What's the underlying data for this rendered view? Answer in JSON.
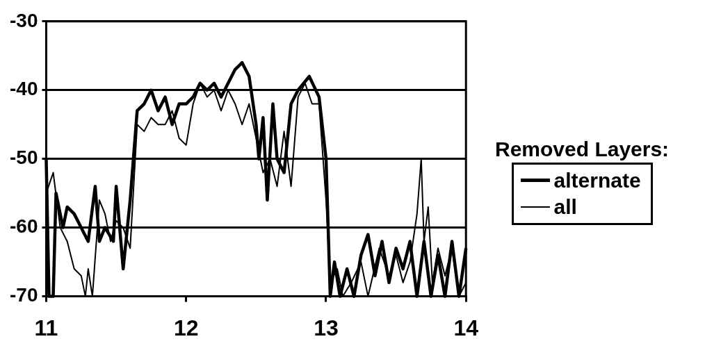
{
  "chart_data": {
    "type": "line",
    "legend_title": "Removed Layers:",
    "legend": "right",
    "grid": "y",
    "xlim": [
      11,
      14
    ],
    "xticks": [
      11,
      12,
      13,
      14
    ],
    "ylim": [
      -70,
      -30
    ],
    "yticks": [
      -70,
      -60,
      -50,
      -40,
      -30
    ],
    "series": [
      {
        "name": "alternate",
        "color": "#000000",
        "x": [
          11.0,
          11.02,
          11.05,
          11.07,
          11.12,
          11.15,
          11.2,
          11.25,
          11.3,
          11.35,
          11.38,
          11.42,
          11.48,
          11.5,
          11.55,
          11.6,
          11.65,
          11.7,
          11.75,
          11.8,
          11.85,
          11.9,
          11.95,
          12.0,
          12.05,
          12.1,
          12.15,
          12.2,
          12.25,
          12.3,
          12.35,
          12.4,
          12.45,
          12.5,
          12.52,
          12.55,
          12.58,
          12.62,
          12.65,
          12.7,
          12.75,
          12.8,
          12.88,
          12.95,
          13.0,
          13.03,
          13.06,
          13.1,
          13.15,
          13.2,
          13.25,
          13.3,
          13.35,
          13.4,
          13.45,
          13.5,
          13.55,
          13.6,
          13.65,
          13.7,
          13.75,
          13.8,
          13.85,
          13.9,
          13.95,
          14.0
        ],
        "values": [
          -50,
          -70,
          -70,
          -55,
          -60,
          -57,
          -58,
          -60,
          -62,
          -54,
          -62,
          -60,
          -62,
          -54,
          -66,
          -56,
          -43,
          -42,
          -40,
          -43,
          -41,
          -45,
          -42,
          -42,
          -41,
          -39,
          -40,
          -39,
          -41,
          -39,
          -37,
          -36,
          -38,
          -45,
          -50,
          -44,
          -56,
          -42,
          -50,
          -52,
          -42,
          -40,
          -38,
          -41,
          -50,
          -70,
          -65,
          -70,
          -66,
          -70,
          -64,
          -61,
          -67,
          -62,
          -68,
          -63,
          -66,
          -62,
          -70,
          -62,
          -70,
          -64,
          -70,
          -62,
          -70,
          -63
        ]
      },
      {
        "name": "all",
        "color": "#000000",
        "x": [
          11.0,
          11.05,
          11.1,
          11.15,
          11.2,
          11.25,
          11.28,
          11.3,
          11.33,
          11.38,
          11.42,
          11.46,
          11.5,
          11.55,
          11.6,
          11.65,
          11.7,
          11.75,
          11.8,
          11.85,
          11.9,
          11.95,
          12.0,
          12.05,
          12.1,
          12.15,
          12.2,
          12.25,
          12.3,
          12.35,
          12.4,
          12.45,
          12.5,
          12.55,
          12.6,
          12.65,
          12.7,
          12.75,
          12.8,
          12.85,
          12.9,
          12.95,
          13.0,
          13.03,
          13.08,
          13.12,
          13.18,
          13.25,
          13.3,
          13.38,
          13.45,
          13.5,
          13.55,
          13.6,
          13.65,
          13.68,
          13.7,
          13.73,
          13.76,
          13.8,
          13.85,
          13.9,
          13.95,
          14.0
        ],
        "values": [
          -55,
          -52,
          -60,
          -62,
          -66,
          -67,
          -70,
          -66,
          -70,
          -56,
          -58,
          -62,
          -59,
          -60,
          -63,
          -45,
          -46,
          -44,
          -45,
          -45,
          -43,
          -47,
          -48,
          -42,
          -39,
          -41,
          -40,
          -43,
          -40,
          -42,
          -45,
          -42,
          -47,
          -52,
          -50,
          -54,
          -46,
          -54,
          -41,
          -39,
          -42,
          -42,
          -56,
          -68,
          -66,
          -70,
          -68,
          -65,
          -70,
          -63,
          -67,
          -64,
          -68,
          -65,
          -58,
          -50,
          -62,
          -57,
          -68,
          -63,
          -67,
          -63,
          -70,
          -68
        ]
      }
    ]
  }
}
